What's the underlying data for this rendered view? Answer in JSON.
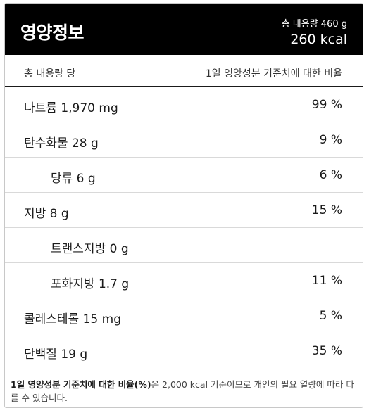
{
  "header": {
    "title": "영양정보",
    "total_amount": "총 내용량 460 g",
    "kcal": "260 kcal"
  },
  "subheader": {
    "left": "총 내용량 당",
    "right": "1일 영양성분 기준치에 대한 비율"
  },
  "rows": [
    {
      "name": "나트륨 1,970 mg",
      "pct": "99 %"
    },
    {
      "name": "탄수화물 28 g",
      "pct": "9 %"
    },
    {
      "name": "당류 6 g",
      "pct": "6 %"
    },
    {
      "name": "지방 8 g",
      "pct": "15 %"
    },
    {
      "name": "트랜스지방 0 g",
      "pct": ""
    },
    {
      "name": "포화지방 1.7 g",
      "pct": "11 %"
    },
    {
      "name": "콜레스테롤 15 mg",
      "pct": "5 %"
    },
    {
      "name": "단백질 19 g",
      "pct": "35 %"
    }
  ],
  "footer": {
    "bold": "1일 영양성분 기준치에 대한 비율(%)",
    "text": "은 2,000 kcal 기준이므로 개인의 필요 열량에 따라 다를 수 있습니다."
  }
}
